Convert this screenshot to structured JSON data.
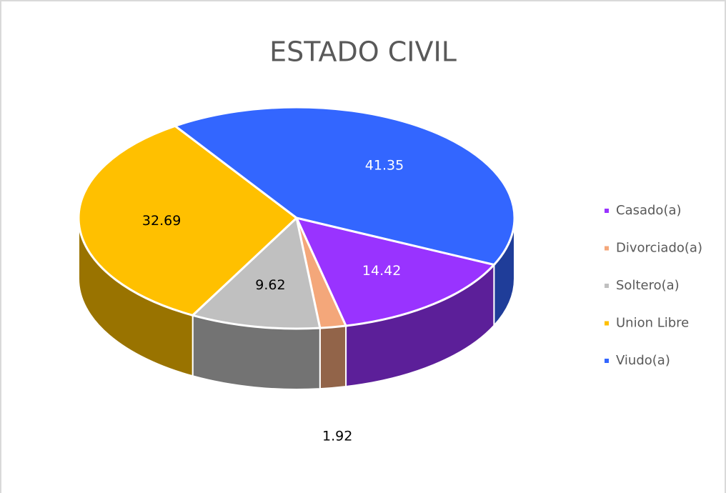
{
  "chart_data": {
    "type": "pie",
    "title": "ESTADO CIVIL",
    "categories": [
      "Casado(a)",
      "Divorciado(a)",
      "Soltero(a)",
      "Union Libre",
      "Viudo(a)"
    ],
    "values": [
      14.42,
      1.92,
      9.62,
      32.69,
      41.35
    ],
    "colors": [
      "#9933ff",
      "#f4a77a",
      "#c0c0c0",
      "#ffc000",
      "#3366ff"
    ],
    "legend": "right"
  }
}
